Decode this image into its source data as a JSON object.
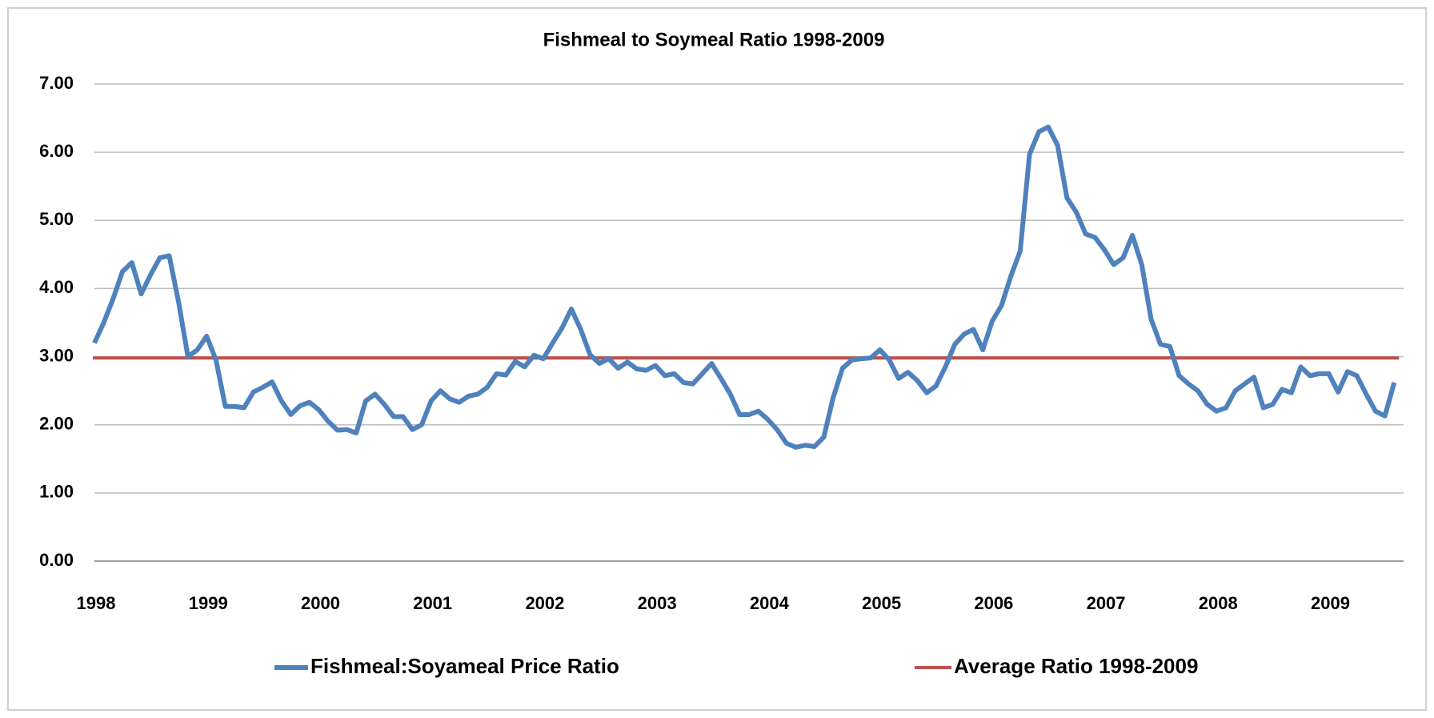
{
  "chart_data": {
    "type": "line",
    "title": "Fishmeal to Soymeal Ratio 1998-2009",
    "categories": [
      "1998",
      null,
      null,
      null,
      null,
      null,
      null,
      null,
      null,
      null,
      null,
      null,
      "1999",
      null,
      null,
      null,
      null,
      null,
      null,
      null,
      null,
      null,
      null,
      null,
      "2000",
      null,
      null,
      null,
      null,
      null,
      null,
      null,
      null,
      null,
      null,
      null,
      "2001",
      null,
      null,
      null,
      null,
      null,
      null,
      null,
      null,
      null,
      null,
      null,
      "2002",
      null,
      null,
      null,
      null,
      null,
      null,
      null,
      null,
      null,
      null,
      null,
      "2003",
      null,
      null,
      null,
      null,
      null,
      null,
      null,
      null,
      null,
      null,
      null,
      "2004",
      null,
      null,
      null,
      null,
      null,
      null,
      null,
      null,
      null,
      null,
      null,
      "2005",
      null,
      null,
      null,
      null,
      null,
      null,
      null,
      null,
      null,
      null,
      null,
      "2006",
      null,
      null,
      null,
      null,
      null,
      null,
      null,
      null,
      null,
      null,
      null,
      "2007",
      null,
      null,
      null,
      null,
      null,
      null,
      null,
      null,
      null,
      null,
      null,
      "2008",
      null,
      null,
      null,
      null,
      null,
      null,
      null,
      null,
      null,
      null,
      null,
      "2009",
      null,
      null,
      null,
      null,
      null,
      null,
      null
    ],
    "series": [
      {
        "name": "Fishmeal:Soyameal Price Ratio",
        "color": "#4f81bd",
        "values": [
          3.2,
          3.5,
          3.85,
          4.25,
          4.38,
          3.92,
          4.2,
          4.45,
          4.48,
          3.8,
          3.0,
          3.1,
          3.3,
          2.95,
          2.27,
          2.27,
          2.25,
          2.48,
          2.55,
          2.63,
          2.35,
          2.15,
          2.28,
          2.33,
          2.22,
          2.05,
          1.92,
          1.93,
          1.88,
          2.35,
          2.45,
          2.3,
          2.12,
          2.12,
          1.93,
          2.0,
          2.35,
          2.5,
          2.38,
          2.33,
          2.42,
          2.45,
          2.55,
          2.75,
          2.73,
          2.93,
          2.85,
          3.02,
          2.97,
          3.2,
          3.42,
          3.7,
          3.4,
          3.03,
          2.9,
          2.97,
          2.83,
          2.92,
          2.82,
          2.8,
          2.87,
          2.72,
          2.75,
          2.62,
          2.6,
          2.75,
          2.9,
          2.68,
          2.45,
          2.15,
          2.15,
          2.2,
          2.08,
          1.93,
          1.73,
          1.67,
          1.7,
          1.68,
          1.82,
          2.4,
          2.83,
          2.95,
          2.97,
          2.98,
          3.1,
          2.95,
          2.68,
          2.77,
          2.65,
          2.47,
          2.57,
          2.85,
          3.18,
          3.33,
          3.4,
          3.1,
          3.52,
          3.75,
          4.18,
          4.55,
          5.97,
          6.3,
          6.37,
          6.1,
          5.33,
          5.12,
          4.8,
          4.75,
          4.57,
          4.35,
          4.45,
          4.78,
          4.35,
          3.55,
          3.18,
          3.15,
          2.72,
          2.6,
          2.5,
          2.3,
          2.2,
          2.25,
          2.5,
          2.6,
          2.7,
          2.25,
          2.3,
          2.52,
          2.47,
          2.85,
          2.72,
          2.75,
          2.75,
          2.48,
          2.78,
          2.72,
          2.45,
          2.2,
          2.13,
          2.62
        ]
      }
    ],
    "average": {
      "name": "Average Ratio 1998-2009",
      "color": "#c0504d",
      "value": 2.98
    },
    "ylim": [
      0,
      7
    ],
    "yticks": [
      {
        "value": 0,
        "label": "0.00"
      },
      {
        "value": 1,
        "label": "1.00"
      },
      {
        "value": 2,
        "label": "2.00"
      },
      {
        "value": 3,
        "label": "3.00"
      },
      {
        "value": 4,
        "label": "4.00"
      },
      {
        "value": 5,
        "label": "5.00"
      },
      {
        "value": 6,
        "label": "6.00"
      },
      {
        "value": 7,
        "label": "7.00"
      }
    ],
    "grid": true,
    "legend": "bottom"
  }
}
